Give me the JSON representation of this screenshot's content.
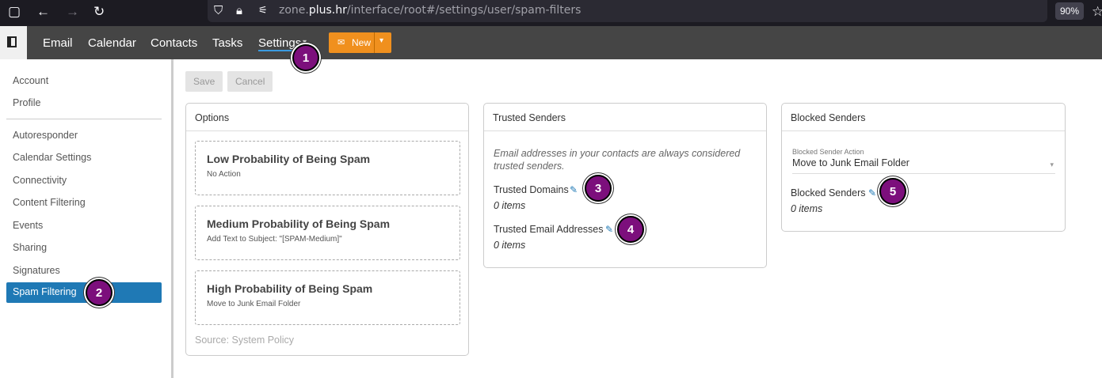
{
  "browser": {
    "url_host": "zone.plus.hr",
    "url_path": "/interface/root#/settings/user/spam-filters",
    "url_prefix": "zone.",
    "zoom": "90%"
  },
  "nav": {
    "items": [
      "Email",
      "Calendar",
      "Contacts",
      "Tasks",
      "Settings"
    ],
    "new_label": "New"
  },
  "sidebar": {
    "group1": [
      "Account",
      "Profile"
    ],
    "group2": [
      "Autoresponder",
      "Calendar Settings",
      "Connectivity",
      "Content Filtering",
      "Events",
      "Sharing",
      "Signatures",
      "Spam Filtering"
    ],
    "active": "Spam Filtering"
  },
  "toolbar": {
    "save": "Save",
    "cancel": "Cancel"
  },
  "options": {
    "title": "Options",
    "levels": [
      {
        "title": "Low Probability of Being Spam",
        "action": "No Action"
      },
      {
        "title": "Medium Probability of Being Spam",
        "action": "Add Text to Subject: \"[SPAM-Medium]\""
      },
      {
        "title": "High Probability of Being Spam",
        "action": "Move to Junk Email Folder"
      }
    ],
    "source": "Source: System Policy"
  },
  "trusted": {
    "title": "Trusted Senders",
    "note": "Email addresses in your contacts are always considered trusted senders.",
    "domains_label": "Trusted Domains",
    "domains_count": "0 items",
    "emails_label": "Trusted Email Addresses",
    "emails_count": "0 items"
  },
  "blocked": {
    "title": "Blocked Senders",
    "action_label": "Blocked Sender Action",
    "action_value": "Move to Junk Email Folder",
    "senders_label": "Blocked Senders",
    "senders_count": "0 items"
  },
  "badges": [
    "1",
    "2",
    "3",
    "4",
    "5"
  ],
  "colors": {
    "accent": "#1f79b5",
    "new_button": "#f0901e",
    "badge": "#7c0f7c"
  }
}
